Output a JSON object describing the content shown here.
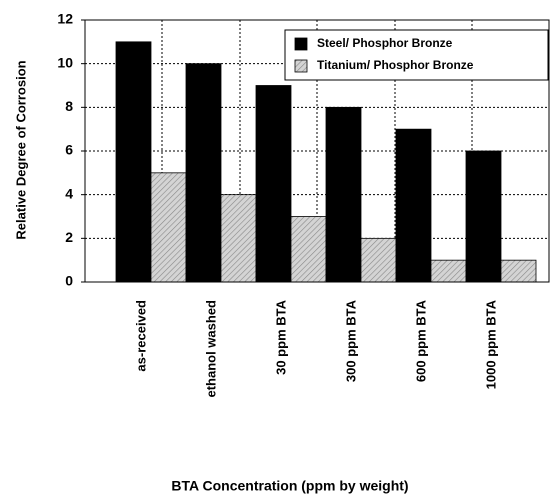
{
  "chart_data": {
    "type": "bar",
    "x_label": "BTA Concentration (ppm by weight)",
    "y_label": "Relative Degree of Corrosion",
    "categories": [
      "as-received",
      "ethanol washed",
      "30 ppm BTA",
      "300 ppm BTA",
      "600 ppm BTA",
      "1000 ppm BTA"
    ],
    "series": [
      {
        "name": "Steel/ Phosphor Bronze",
        "color": "#000000",
        "values": [
          11,
          10,
          9,
          8,
          7,
          6
        ]
      },
      {
        "name": "Titanium/ Phosphor Bronze",
        "color": "#d4d4d4",
        "hatch": true,
        "values": [
          5,
          4,
          3,
          2,
          1,
          1
        ]
      }
    ],
    "ylim": [
      0,
      12
    ],
    "yticks": [
      0,
      2,
      4,
      6,
      8,
      10,
      12
    ],
    "grid": true,
    "legend": "upper right"
  }
}
